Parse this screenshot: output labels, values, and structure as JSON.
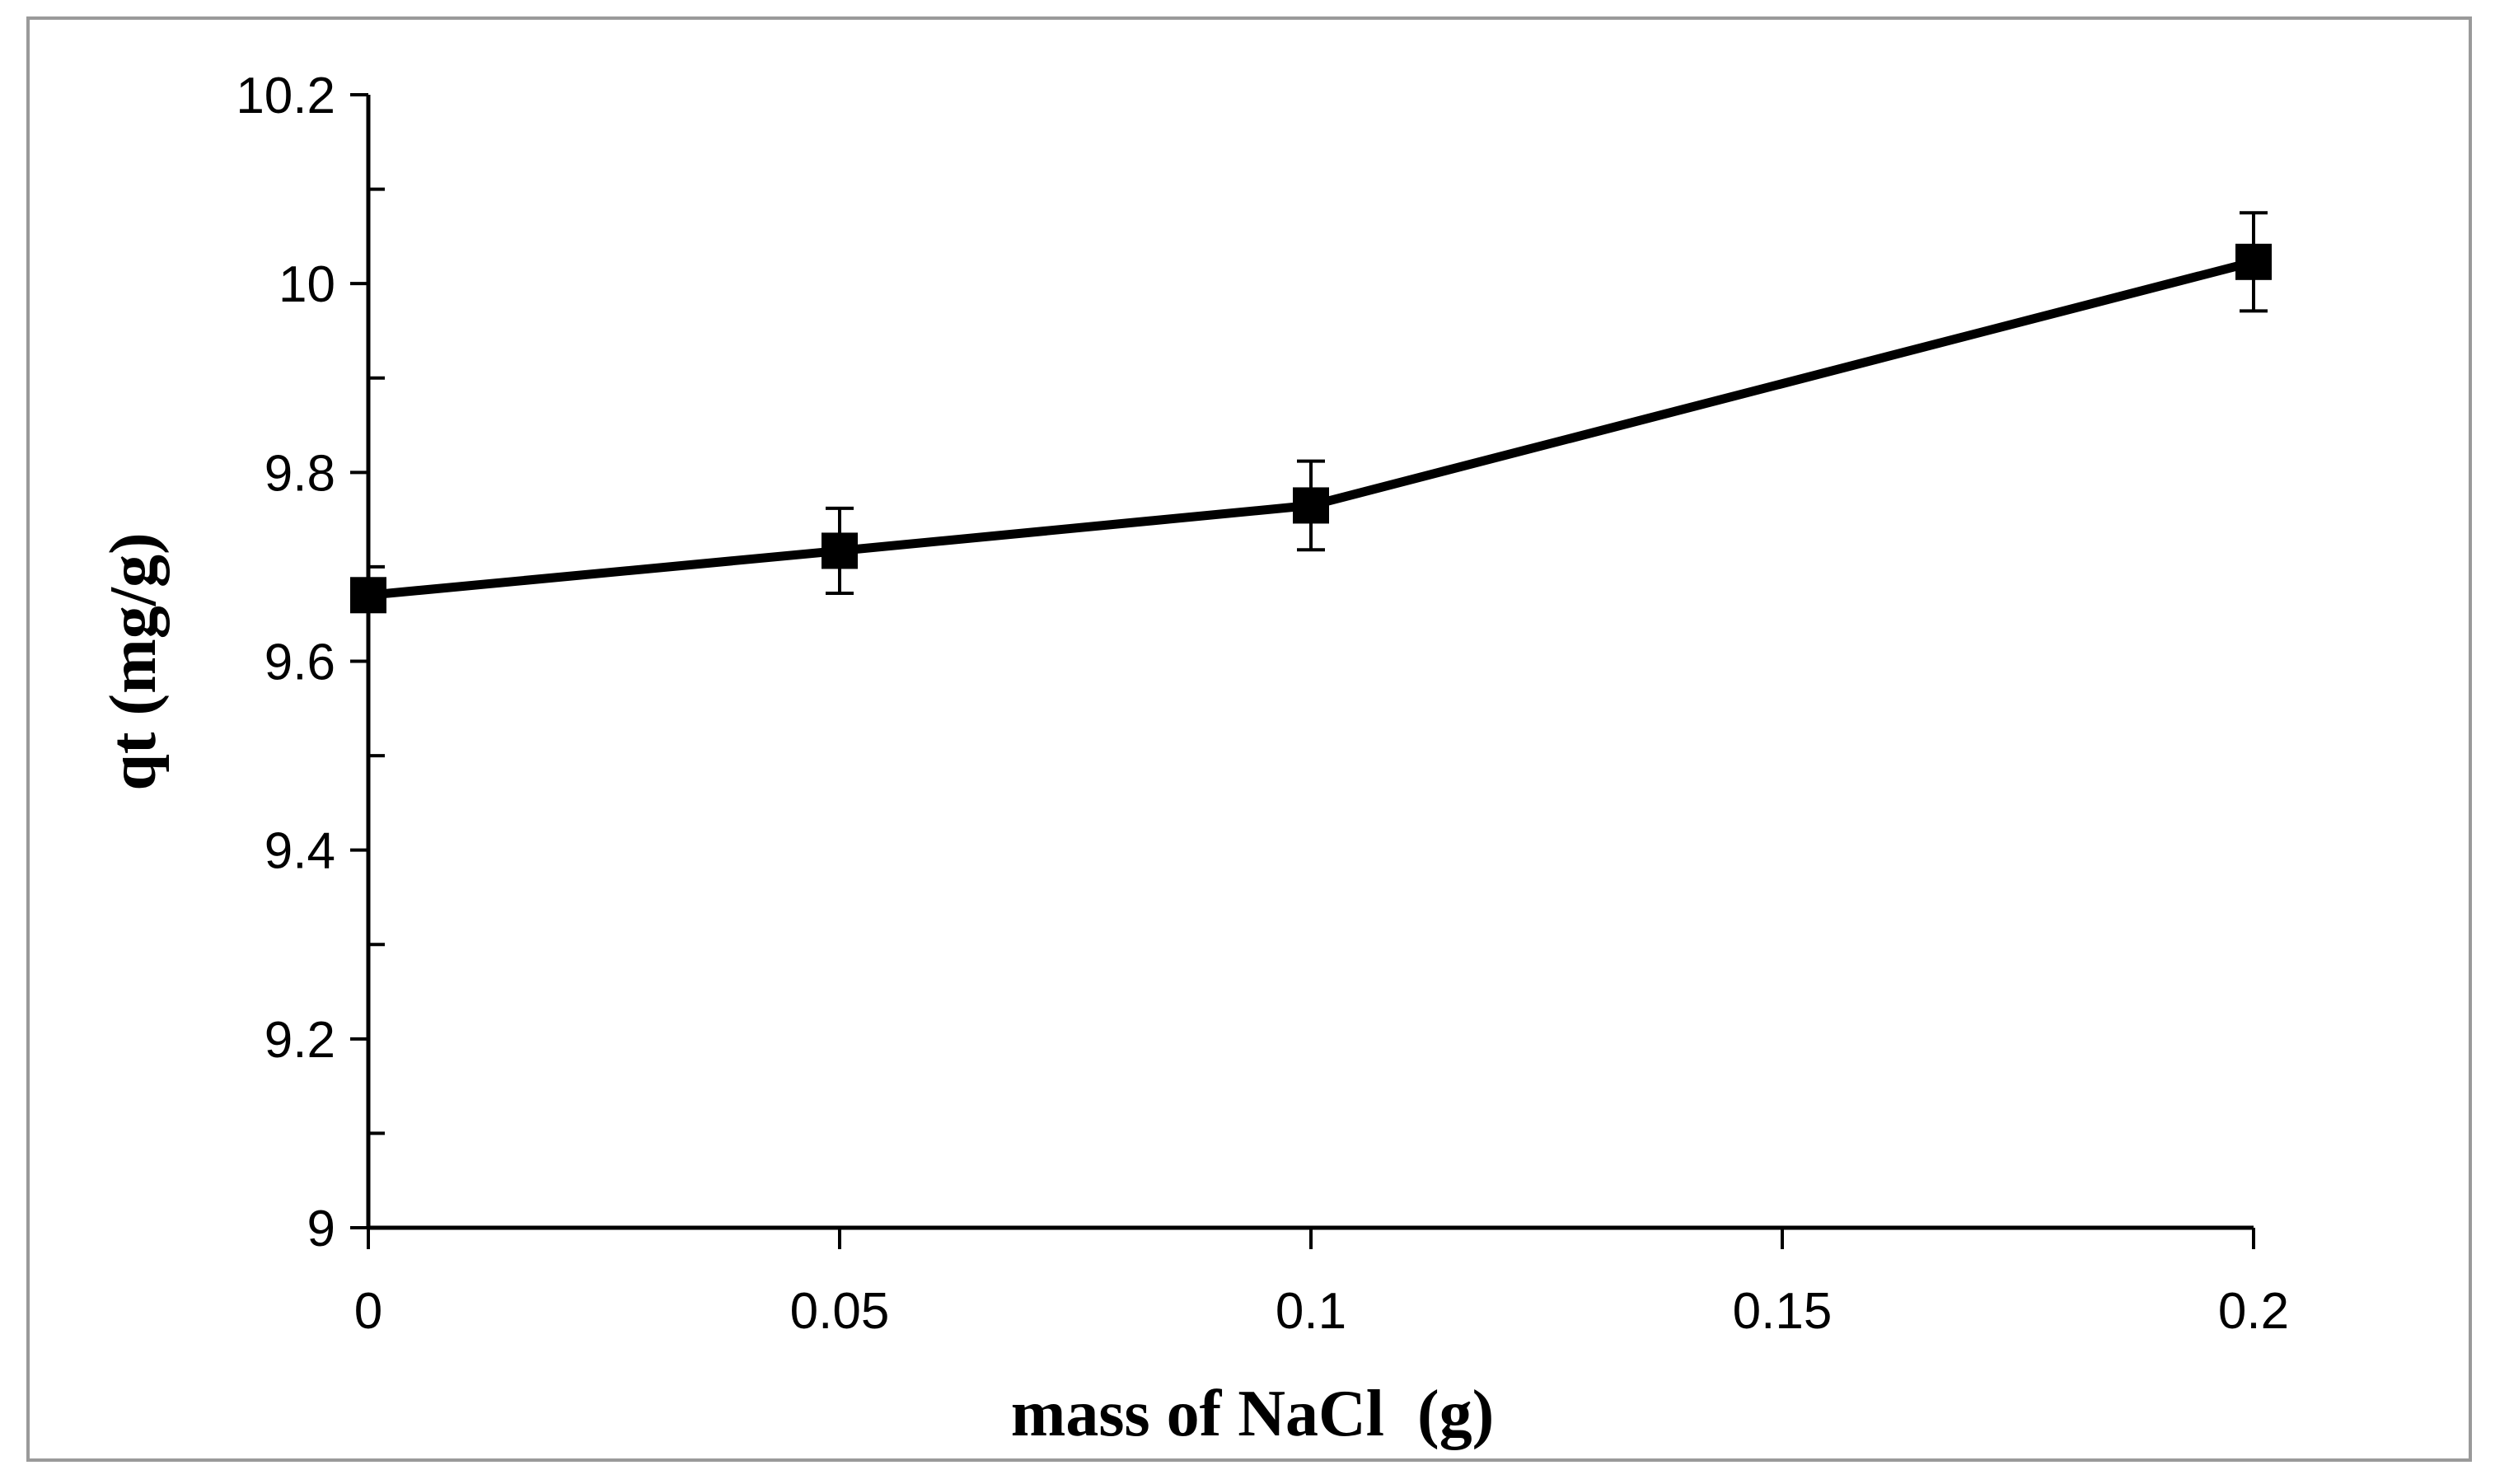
{
  "chart_data": {
    "type": "line",
    "title": "",
    "xlabel": "mass of NaCl  (g)",
    "ylabel": "qt (mg/g)",
    "xlim": [
      0,
      0.2
    ],
    "ylim": [
      9,
      10.2
    ],
    "x_ticks": [
      0,
      0.05,
      0.1,
      0.15,
      0.2
    ],
    "x_tick_labels": [
      "0",
      "0.05",
      "0.1",
      "0.15",
      "0.2"
    ],
    "y_ticks": [
      9,
      9.2,
      9.4,
      9.6,
      9.8,
      10,
      10.2
    ],
    "y_tick_labels": [
      "9",
      "9.2",
      "9.4",
      "9.6",
      "9.8",
      "10",
      "10.2"
    ],
    "grid": false,
    "legend": "none",
    "series": [
      {
        "name": "qt",
        "marker": "square",
        "color": "#000000",
        "x": [
          0,
          0.05,
          0.1,
          0.2
        ],
        "y": [
          9.67,
          9.717,
          9.765,
          10.023
        ],
        "error": [
          0,
          0.045,
          0.047,
          0.052
        ]
      }
    ]
  }
}
